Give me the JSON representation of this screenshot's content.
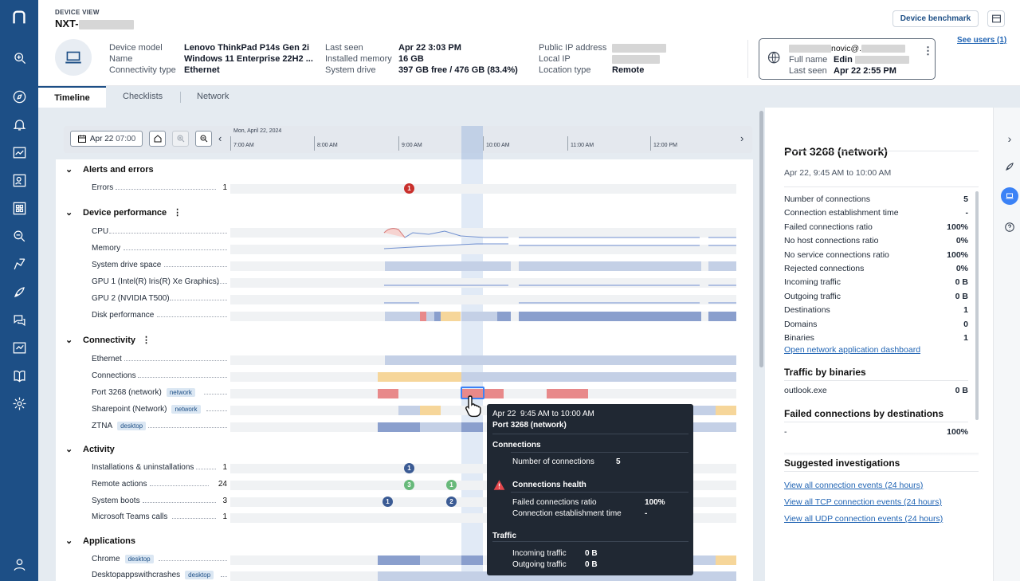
{
  "header": {
    "eyebrow": "DEVICE VIEW",
    "device_prefix": "NXT-",
    "benchmark_btn": "Device benchmark",
    "see_users": "See users (1)"
  },
  "device_info": {
    "col1": [
      {
        "label": "Device model",
        "value": "Lenovo ThinkPad P14s Gen 2i"
      },
      {
        "label": "Name",
        "value": "Windows 11 Enterprise 22H2 ..."
      },
      {
        "label": "Connectivity type",
        "value": "Ethernet"
      }
    ],
    "col2": [
      {
        "label": "Last seen",
        "value": "Apr 22 3:03 PM"
      },
      {
        "label": "Installed memory",
        "value": "16 GB"
      },
      {
        "label": "System drive",
        "value": "397 GB free / 476 GB (83.4%)"
      }
    ],
    "col3": [
      {
        "label": "Public IP address",
        "value": ""
      },
      {
        "label": "Local IP",
        "value": ""
      },
      {
        "label": "Location type",
        "value": "Remote"
      }
    ]
  },
  "user_card": {
    "email_suffix": "novic@.",
    "full_name_label": "Full name",
    "full_name": "Edin",
    "last_seen_label": "Last seen",
    "last_seen": "Apr 22 2:55 PM"
  },
  "tabs": [
    "Timeline",
    "Checklists",
    "Network"
  ],
  "toolbar": {
    "date_btn": "Apr 22",
    "time_btn": "07:00",
    "date_caption": "Mon, April 22, 2024",
    "hours": [
      "7:00 AM",
      "8:00 AM",
      "9:00 AM",
      "10:00 AM",
      "11:00 AM",
      "12:00 PM"
    ]
  },
  "sections": {
    "alerts": "Alerts and errors",
    "perf": "Device performance",
    "conn": "Connectivity",
    "activity": "Activity",
    "apps": "Applications"
  },
  "rows": {
    "errors": {
      "label": "Errors",
      "count": "1"
    },
    "cpu": "CPU",
    "memory": "Memory",
    "drive": "System drive space",
    "gpu1": "GPU 1 (Intel(R) Iris(R) Xe Graphics)",
    "gpu2": "GPU 2 (NVIDIA T500)",
    "disk": "Disk performance",
    "ethernet": "Ethernet",
    "connections": "Connections",
    "port": "Port 3268 (network)",
    "sharepoint": "Sharepoint (Network)",
    "ztna": "ZTNA",
    "installs": {
      "label": "Installations & uninstallations",
      "count": "1"
    },
    "remote": {
      "label": "Remote actions",
      "count": "24"
    },
    "boots": {
      "label": "System boots",
      "count": "3"
    },
    "teams": {
      "label": "Microsoft Teams calls",
      "count": "1"
    },
    "chrome": "Chrome",
    "desktopapps": "Desktopappswithcrashes"
  },
  "tags": {
    "network": "network",
    "desktop": "desktop"
  },
  "badges": {
    "error": "1",
    "install": "1",
    "remote1": "3",
    "remote2": "1",
    "boot1": "1",
    "boot2": "2"
  },
  "tooltip": {
    "date": "Apr 22",
    "range": "9:45 AM to 10:00 AM",
    "title": "Port 3268 (network)",
    "sec_connections": "Connections",
    "num_conn_label": "Number of connections",
    "num_conn_value": "5",
    "sec_health": "Connections health",
    "failed_label": "Failed connections ratio",
    "failed_value": "100%",
    "estab_label": "Connection establishment time",
    "estab_value": "-",
    "sec_traffic": "Traffic",
    "in_label": "Incoming traffic",
    "in_value": "0 B",
    "out_label": "Outgoing traffic",
    "out_value": "0 B"
  },
  "right_panel": {
    "title": "Port 3268 (network)",
    "range": "Apr 22, 9:45 AM to 10:00 AM",
    "metrics": [
      {
        "label": "Number of connections",
        "value": "5"
      },
      {
        "label": "Connection establishment time",
        "value": "-"
      },
      {
        "label": "Failed connections ratio",
        "value": "100%"
      },
      {
        "label": "No host connections ratio",
        "value": "0%"
      },
      {
        "label": "No service connections ratio",
        "value": "100%"
      },
      {
        "label": "Rejected connections",
        "value": "0%"
      },
      {
        "label": "Incoming traffic",
        "value": "0 B"
      },
      {
        "label": "Outgoing traffic",
        "value": "0 B"
      },
      {
        "label": "Destinations",
        "value": "1"
      },
      {
        "label": "Domains",
        "value": "0"
      },
      {
        "label": "Binaries",
        "value": "1"
      }
    ],
    "dashboard_link": "Open network application dashboard",
    "traffic_title": "Traffic by binaries",
    "traffic_row": {
      "label": "outlook.exe",
      "value": "0 B"
    },
    "failed_title": "Failed connections by destinations",
    "failed_row": {
      "label": "-",
      "value": "100%"
    },
    "suggested_title": "Suggested investigations",
    "links": [
      "View all connection events (24 hours)",
      "View all TCP connection events (24 hours)",
      "View all UDP connection events (24 hours)"
    ]
  },
  "colors": {
    "brand": "#1d4f86",
    "red": "#e8898a",
    "yellow": "#f6d69a",
    "blue_dark": "#8a9fcd",
    "blue_light": "#c4d0e6"
  }
}
